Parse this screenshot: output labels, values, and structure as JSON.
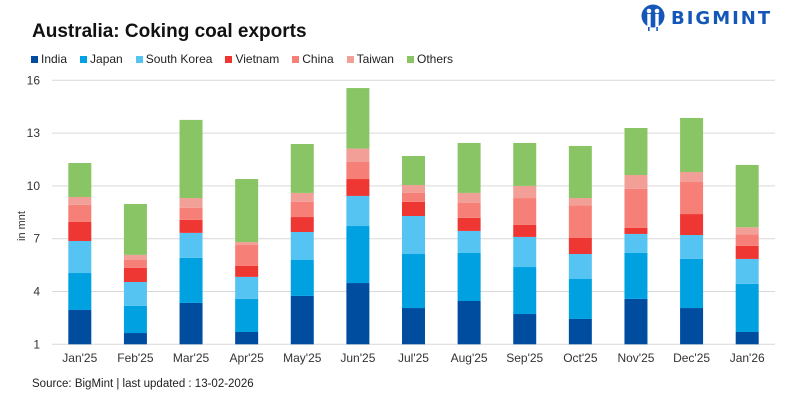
{
  "title": "Australia: Coking coal exports",
  "logo": {
    "text": "BIGMINT",
    "color": "#1457b8"
  },
  "source": "Source: BigMint | last updated : 13-02-2026",
  "chart_data": {
    "type": "bar",
    "stacked": true,
    "title": "Australia: Coking coal exports",
    "xlabel": "",
    "ylabel": "in mnt",
    "ylim": [
      1,
      16
    ],
    "yticks": [
      1,
      4,
      7,
      10,
      13,
      16
    ],
    "grid": true,
    "legend_position": "top-left",
    "categories": [
      "Jan'25",
      "Feb'25",
      "Mar'25",
      "Apr'25",
      "May'25",
      "Jun'25",
      "Jul'25",
      "Aug'25",
      "Sep'25",
      "Oct'25",
      "Nov'25",
      "Dec'25",
      "Jan'26"
    ],
    "series": [
      {
        "name": "India",
        "color": "#004c9f",
        "values": [
          1.95,
          0.64,
          2.35,
          0.7,
          2.75,
          3.48,
          2.06,
          2.46,
          1.72,
          1.44,
          2.58,
          2.06,
          0.7
        ]
      },
      {
        "name": "Japan",
        "color": "#00a1e0",
        "values": [
          2.1,
          1.54,
          2.56,
          1.88,
          2.04,
          3.24,
          3.07,
          2.73,
          2.67,
          2.27,
          2.61,
          2.79,
          2.73
        ]
      },
      {
        "name": "South Korea",
        "color": "#55c4f2",
        "values": [
          1.82,
          1.36,
          1.42,
          1.25,
          1.59,
          1.71,
          2.16,
          1.25,
          1.71,
          1.42,
          1.08,
          1.36,
          1.42
        ]
      },
      {
        "name": "Vietnam",
        "color": "#ee3733",
        "values": [
          1.08,
          0.8,
          0.74,
          0.62,
          0.85,
          0.96,
          0.8,
          0.74,
          0.68,
          0.91,
          0.34,
          1.19,
          0.74
        ]
      },
      {
        "name": "China",
        "color": "#f68077",
        "values": [
          0.97,
          0.45,
          0.68,
          1.19,
          0.86,
          0.97,
          0.51,
          0.85,
          1.53,
          1.86,
          2.22,
          1.82,
          0.66
        ]
      },
      {
        "name": "Taiwan",
        "color": "#f19f97",
        "values": [
          0.45,
          0.29,
          0.56,
          0.17,
          0.51,
          0.76,
          0.45,
          0.57,
          0.69,
          0.41,
          0.79,
          0.57,
          0.4
        ]
      },
      {
        "name": "Others",
        "color": "#8ac565",
        "values": [
          1.93,
          2.89,
          4.44,
          3.58,
          2.78,
          3.44,
          1.65,
          2.84,
          2.44,
          2.96,
          2.67,
          3.07,
          3.54
        ]
      }
    ]
  }
}
